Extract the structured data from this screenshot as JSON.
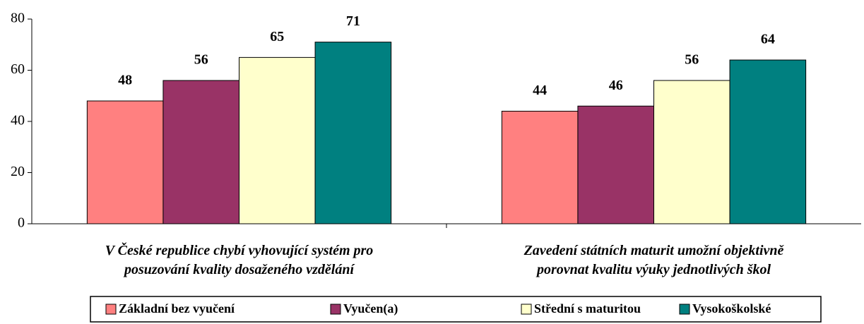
{
  "chart_data": {
    "type": "bar",
    "categories": [
      "V České republice chybí vyhovující systém pro\nposuzování kvality dosaženého vzdělání",
      "Zavedení státních maturit umožní objektivně\nporovnat kvalitu výuky jednotlivých škol"
    ],
    "series": [
      {
        "name": "Základní bez vyučení",
        "color": "#ff8080",
        "values": [
          48,
          44
        ]
      },
      {
        "name": "Vyučen(a)",
        "color": "#993366",
        "values": [
          56,
          46
        ]
      },
      {
        "name": "Střední s maturitou",
        "color": "#ffffcc",
        "values": [
          65,
          56
        ]
      },
      {
        "name": "Vysokoškolské",
        "color": "#008080",
        "values": [
          71,
          64
        ]
      }
    ],
    "ylim": [
      0,
      80
    ],
    "yticks": [
      0,
      20,
      40,
      60,
      80
    ],
    "grid": false,
    "legend": "bottom"
  }
}
